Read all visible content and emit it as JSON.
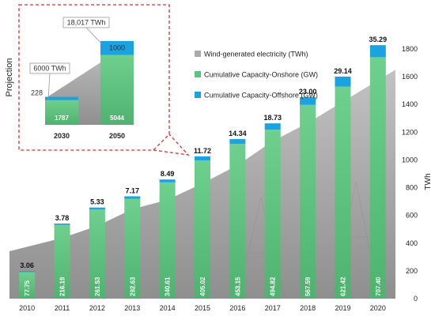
{
  "chart_data": [
    {
      "type": "bar",
      "categories": [
        "2010",
        "2011",
        "2012",
        "2013",
        "2014",
        "2015",
        "2016",
        "2017",
        "2018",
        "2019",
        "2020"
      ],
      "series": [
        {
          "name": "Wind-generated electricity (TWh)",
          "kind": "area",
          "axis": "right",
          "values": [
            342,
            437,
            524,
            645,
            712,
            831,
            962,
            1135,
            1266,
            1420,
            1650
          ],
          "color": "#aaaaaa"
        },
        {
          "name": "Cumulative Capacity-Onshore (GW)",
          "kind": "bar",
          "axis": "left",
          "values": [
            77.75,
            216.19,
            261.53,
            292.63,
            340.61,
            405.02,
            453.15,
            494.82,
            567.59,
            621.42,
            707.4
          ],
          "labels": [
            "77.75",
            "216.19",
            "261.53",
            "292.63",
            "340.61",
            "405.02",
            "453.15",
            "494.82",
            "567.59",
            "621.42",
            "707.40"
          ],
          "color": "#5cc47e"
        },
        {
          "name": "Cumulative Capacity-Offshore (GW)",
          "kind": "bar",
          "axis": "left",
          "values": [
            3.06,
            3.78,
            5.33,
            7.17,
            8.49,
            11.72,
            14.34,
            18.73,
            23.0,
            29.14,
            35.29
          ],
          "labels": [
            "3.06",
            "3.78",
            "5.33",
            "7.17",
            "8.49",
            "11.72",
            "14.34",
            "18.73",
            "23.00",
            "29.14",
            "35.29"
          ],
          "color": "#1aa3e0"
        }
      ],
      "right_axis": {
        "label": "TWh",
        "range": [
          0,
          1800
        ],
        "ticks": [
          "0",
          "200",
          "400",
          "600",
          "800",
          "1000",
          "1200",
          "1400",
          "1600",
          "1800"
        ]
      },
      "legend": {
        "placement": "top-center",
        "entries": [
          {
            "label": "Wind-generated electricity (TWh)",
            "color": "#aaaaaa"
          },
          {
            "label": "Cumulative Capacity-Onshore (GW)",
            "color": "#5cc47e"
          },
          {
            "label": "Cumulative Capacity-Offshore (GW)",
            "color": "#1aa3e0"
          }
        ]
      }
    },
    {
      "type": "bar",
      "title": "Projection",
      "categories": [
        "2030",
        "2050"
      ],
      "series": [
        {
          "name": "Cumulative Capacity-Onshore (GW)",
          "values": [
            1787,
            5044
          ],
          "labels": [
            "1787",
            "5044"
          ],
          "color": "#5cc47e"
        },
        {
          "name": "Cumulative Capacity-Offshore (GW)",
          "values": [
            228,
            1000
          ],
          "labels": [
            "228",
            "1000"
          ],
          "color": "#1aa3e0"
        }
      ],
      "area_values": [
        6000,
        18017
      ],
      "annotations": [
        "6000 TWh",
        "18,017 TWh"
      ],
      "ylim": [
        0,
        6200
      ]
    }
  ]
}
